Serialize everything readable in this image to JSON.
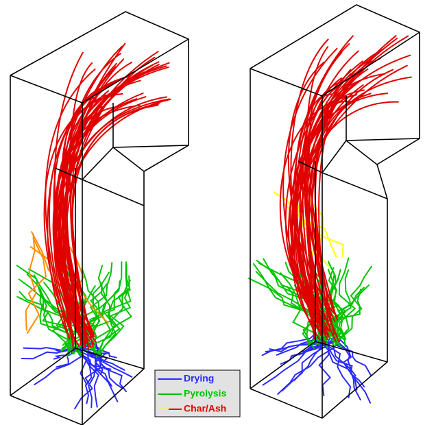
{
  "legend": {
    "items": [
      {
        "label": "Drying",
        "color": "#2a2aff"
      },
      {
        "label": "Pyrolysis",
        "color": "#00c400"
      },
      {
        "label": "Char/Ash",
        "color": "#e00000"
      }
    ]
  }
}
